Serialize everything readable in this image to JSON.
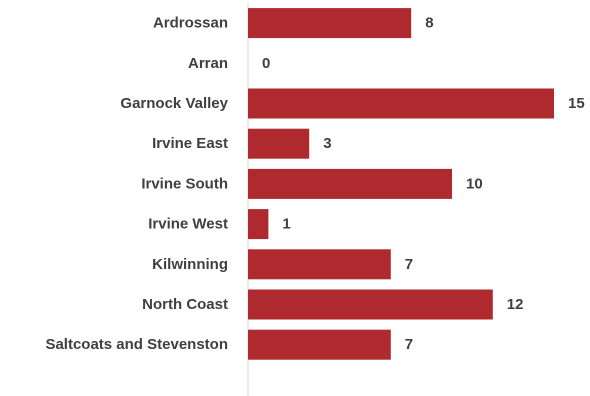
{
  "chart_data": {
    "type": "bar",
    "orientation": "horizontal",
    "categories": [
      "Ardrossan",
      "Arran",
      "Garnock Valley",
      "Irvine East",
      "Irvine South",
      "Irvine West",
      "Kilwinning",
      "North Coast",
      "Saltcoats and Stevenston"
    ],
    "values": [
      8,
      0,
      15,
      3,
      10,
      1,
      7,
      12,
      7
    ],
    "data_labels": [
      "8",
      "0",
      "15",
      "3",
      "10",
      "1",
      "7",
      "12",
      "7"
    ],
    "bar_color": "#AE2A2E",
    "axis_color": "#D9D9D9",
    "text_color": "#404040",
    "xlim": [
      0,
      15
    ],
    "grid": false,
    "legend": "none",
    "title": "",
    "xlabel": "",
    "ylabel": ""
  }
}
